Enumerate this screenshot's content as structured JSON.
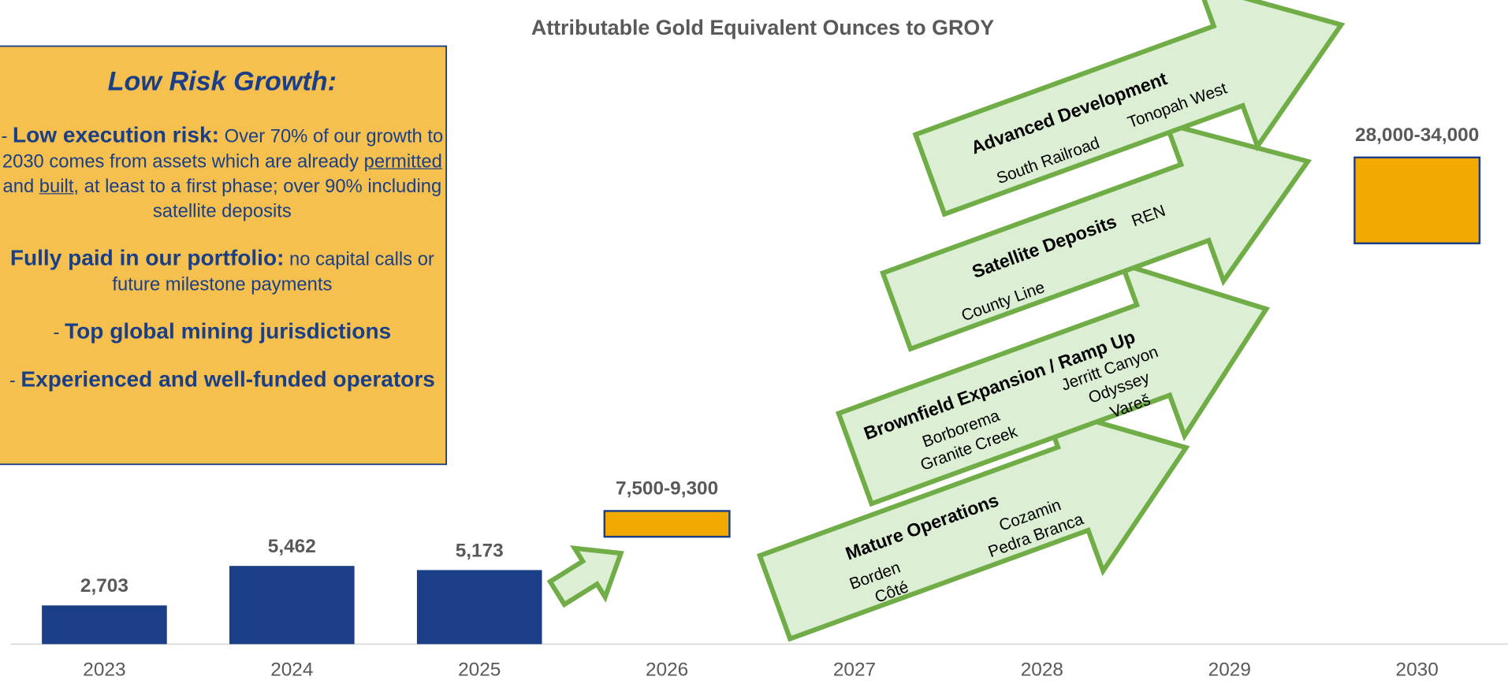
{
  "chart_data": {
    "type": "bar",
    "title": "Attributable Gold Equivalent Ounces to GROY",
    "categories": [
      "2023",
      "2024",
      "2025",
      "2026",
      "2027",
      "2028",
      "2029",
      "2030"
    ],
    "ylim": [
      0,
      45000
    ],
    "series": [
      {
        "color": "#1b3f86",
        "values": [
          2703,
          5462,
          5173,
          null,
          null,
          null,
          null,
          null
        ],
        "value_labels": [
          "2,703",
          "5,462",
          "5,173",
          null,
          null,
          null,
          null,
          null
        ]
      }
    ],
    "range_color": "#f2a900",
    "range_low": [
      null,
      null,
      null,
      7500,
      null,
      null,
      null,
      28000
    ],
    "range_high": [
      null,
      null,
      null,
      9300,
      null,
      null,
      null,
      34000
    ],
    "range_labels": [
      null,
      null,
      null,
      "7,500-9,300",
      null,
      null,
      null,
      "28,000-34,000"
    ]
  },
  "callout": {
    "title": "Low Risk Growth:",
    "items": [
      {
        "dash": "-",
        "bold": "Low execution risk:",
        "text": [
          " Over 70% of our growth to 2030 comes from assets which are already ",
          "permitted",
          " and ",
          "built",
          ", at least to a first phase; over 90% including satellite deposits"
        ]
      },
      {
        "bold": "Fully paid in our portfolio:",
        "text": [
          " no capital calls or future milestone payments"
        ]
      },
      {
        "dash": "-",
        "bold": "Top global mining jurisdictions"
      },
      {
        "dash": "-",
        "bold": "Experienced and well-funded operators"
      }
    ]
  },
  "arrows": [
    {
      "title": "Mature Operations",
      "items": [
        "Borden",
        "Côté",
        "Cozamin",
        "Pedra Branca"
      ]
    },
    {
      "title": "Brownfield Expansion / Ramp Up",
      "items": [
        "Borborema",
        "Granite Creek",
        "Jerritt Canyon",
        "Odyssey",
        "Vareš"
      ]
    },
    {
      "title": "Satellite Deposits",
      "items": [
        "County Line",
        "REN"
      ]
    },
    {
      "title": "Advanced Development",
      "items": [
        "South Railroad",
        "Tonopah West"
      ]
    }
  ]
}
